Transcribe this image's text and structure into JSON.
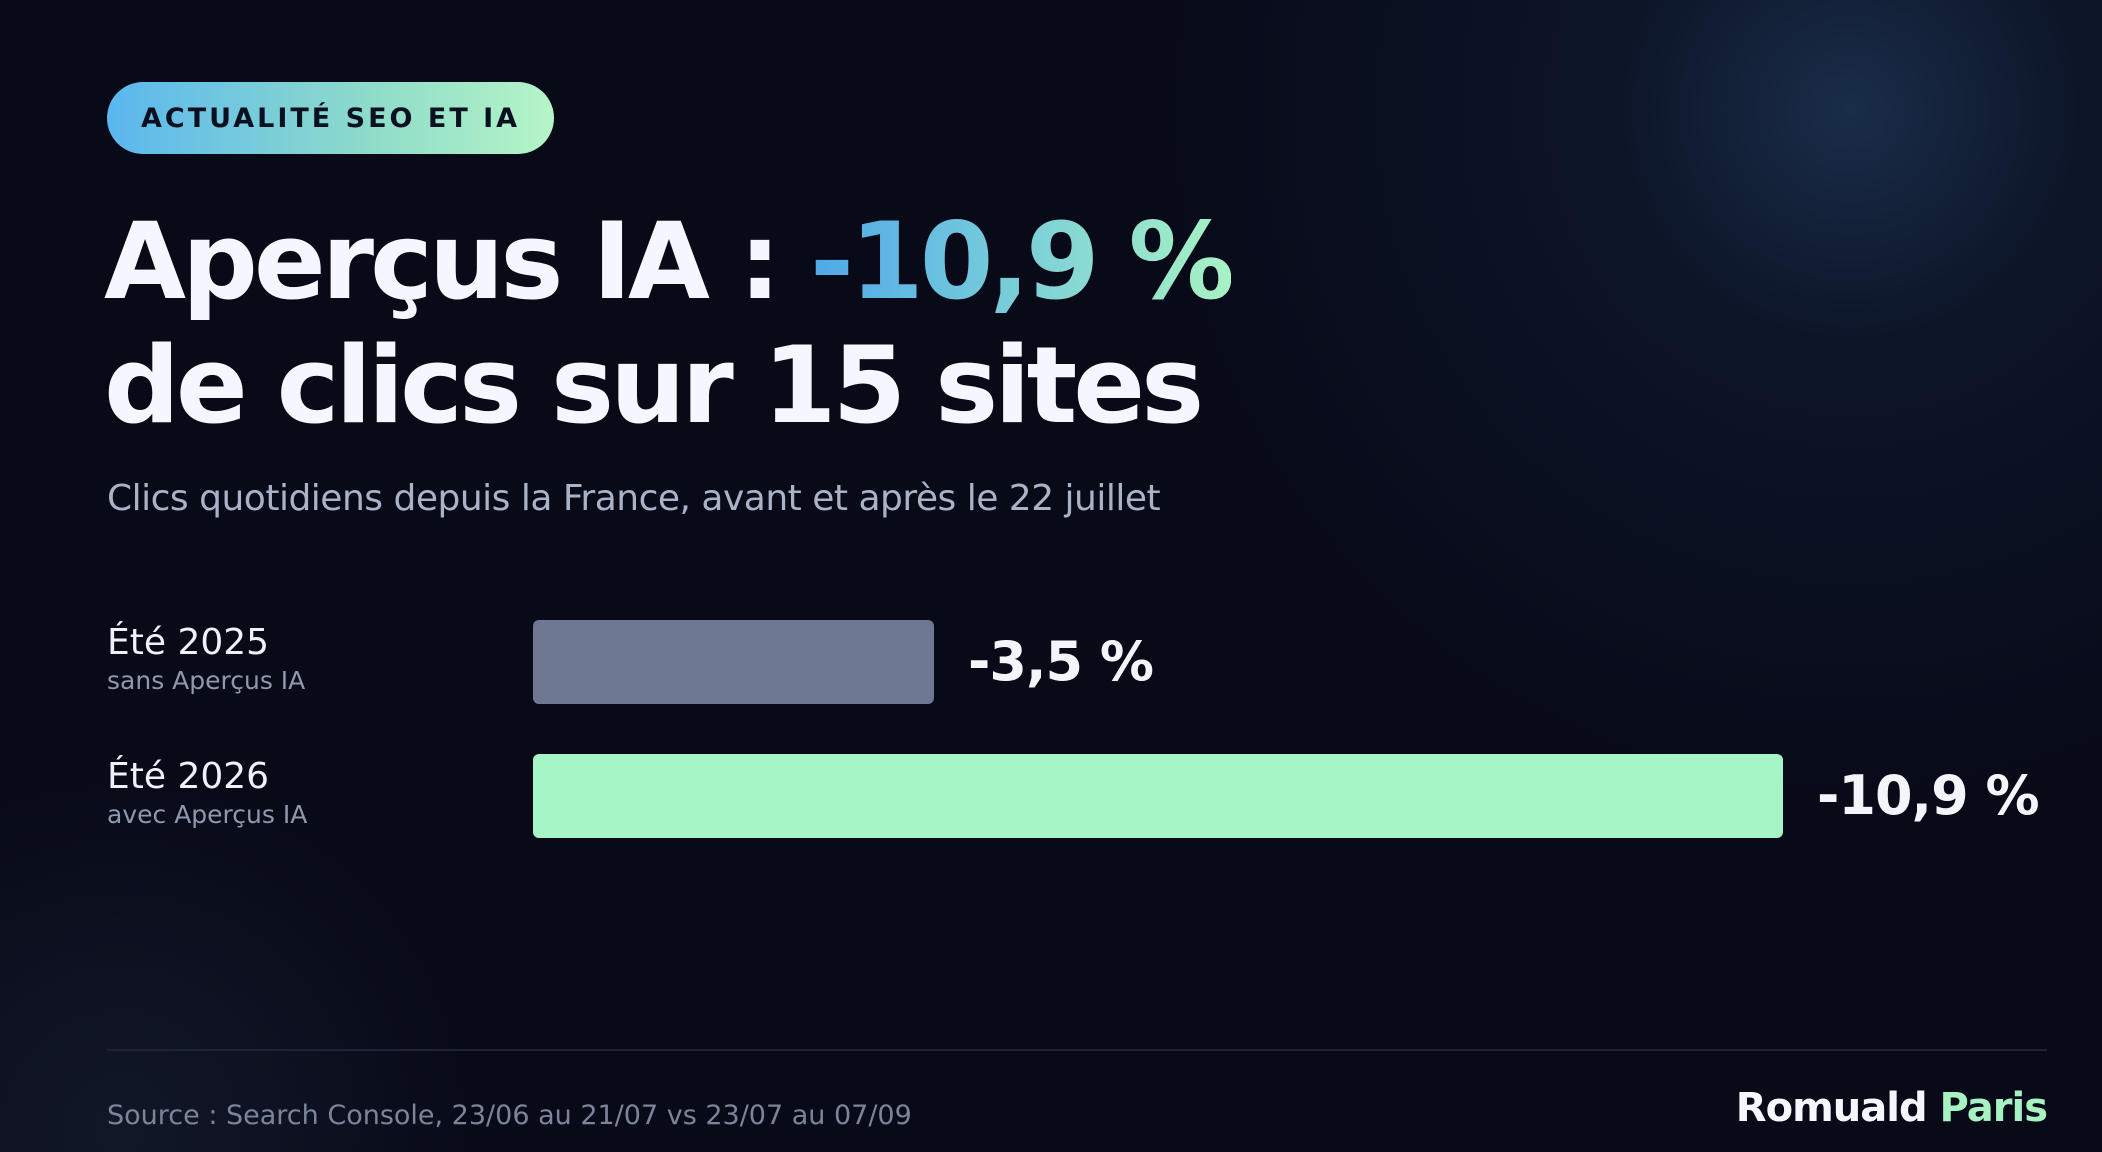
{
  "badge": "ACTUALITÉ SEO ET IA",
  "title": {
    "prefix": "Aperçus IA : ",
    "highlight": "-10,9 %",
    "line2": "de clics sur 15 sites"
  },
  "subtitle": "Clics quotidiens depuis la France, avant et après le 22 juillet",
  "chart_data": {
    "type": "bar",
    "orientation": "horizontal",
    "categories": [
      "Été 2025",
      "Été 2026"
    ],
    "category_sublabels": [
      "sans Aperçus IA",
      "avec Aperçus IA"
    ],
    "values": [
      -3.5,
      -10.9
    ],
    "value_labels": [
      "-3,5 %",
      "-10,9 %"
    ],
    "colors": [
      "#6e7893",
      "#a6f5c6"
    ],
    "xlim": [
      0,
      -10.9
    ],
    "grid": false,
    "legend": "none"
  },
  "footer": {
    "source": "Source : Search Console, 23/06 au 21/07 vs 23/07 au 07/09",
    "brand_first": "Romuald",
    "brand_last": "Paris"
  }
}
